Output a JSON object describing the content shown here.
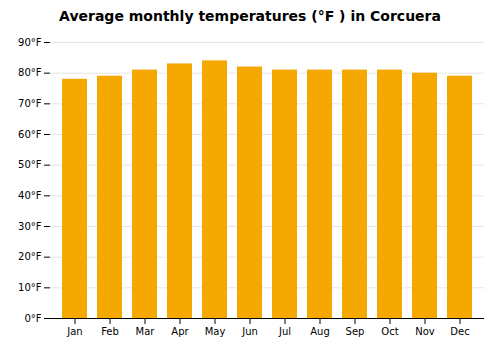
{
  "chart_data": {
    "type": "bar",
    "title": "Average monthly temperatures (°F ) in Corcuera",
    "categories": [
      "Jan",
      "Feb",
      "Mar",
      "Apr",
      "May",
      "Jun",
      "Jul",
      "Aug",
      "Sep",
      "Oct",
      "Nov",
      "Dec"
    ],
    "values": [
      78,
      79,
      81,
      83,
      84,
      82,
      81,
      81,
      81,
      81,
      80,
      79
    ],
    "color": "#F5A800",
    "ylim": [
      0,
      90
    ],
    "yticks": [
      {
        "value": 0,
        "label": "0°F"
      },
      {
        "value": 10,
        "label": "10°F"
      },
      {
        "value": 20,
        "label": "20°F"
      },
      {
        "value": 30,
        "label": "30°F"
      },
      {
        "value": 40,
        "label": "40°F"
      },
      {
        "value": 50,
        "label": "50°F"
      },
      {
        "value": 60,
        "label": "60°F"
      },
      {
        "value": 70,
        "label": "70°F"
      },
      {
        "value": 80,
        "label": "80°F"
      },
      {
        "value": 90,
        "label": "90°F"
      }
    ],
    "grid": true
  }
}
